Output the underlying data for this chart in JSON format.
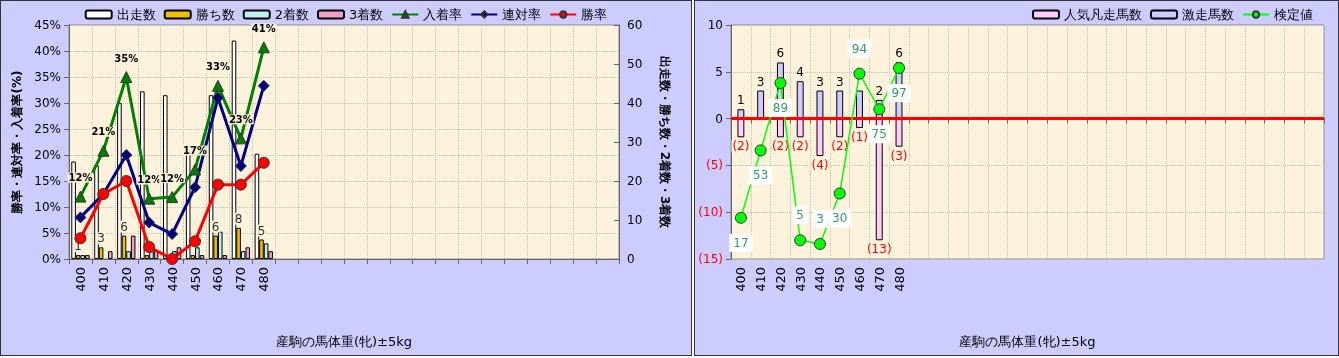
{
  "chart_data": [
    {
      "type": "bar",
      "xlabel": "産駒の馬体重(牝)±5kg",
      "ylabel": "勝率・連対率・入着率(%)",
      "y2label": "出走数・勝ち数・2着数・3着数",
      "categories": [
        "400",
        "410",
        "420",
        "430",
        "440",
        "450",
        "460",
        "470",
        "480",
        null,
        null,
        null,
        null,
        null,
        null,
        null,
        null,
        null,
        null,
        null,
        null,
        null,
        null,
        null
      ],
      "ylim": [
        0,
        45
      ],
      "yticks": [
        {
          "value": 0,
          "label": "0%"
        },
        {
          "value": 5,
          "label": "5%"
        },
        {
          "value": 10,
          "label": "10%"
        },
        {
          "value": 15,
          "label": "15%"
        },
        {
          "value": 20,
          "label": "20%"
        },
        {
          "value": 25,
          "label": "25%"
        },
        {
          "value": 30,
          "label": "30%"
        },
        {
          "value": 35,
          "label": "35%"
        },
        {
          "value": 40,
          "label": "40%"
        },
        {
          "value": 45,
          "label": "45%"
        }
      ],
      "y2lim": [
        0,
        60
      ],
      "y2ticks": [
        0,
        10,
        20,
        30,
        40,
        50,
        60
      ],
      "grid": true,
      "legend": "top",
      "series": [
        {
          "name": "出走数",
          "axis": "y2",
          "color": "#ffffff",
          "values": [
            25,
            24,
            40,
            43,
            42,
            29,
            42,
            56,
            27,
            null,
            null,
            null,
            null,
            null,
            null,
            null,
            null,
            null,
            null,
            null,
            null,
            null,
            null,
            null
          ]
        },
        {
          "name": "勝ち数",
          "axis": "y2",
          "color": "#f0c000",
          "values": [
            1,
            3,
            6,
            1,
            0,
            1,
            6,
            8,
            5,
            null,
            null,
            null,
            null,
            null,
            null,
            null,
            null,
            null,
            null,
            null,
            null,
            null,
            null,
            null
          ],
          "value_labels": [
            "1",
            "3",
            "6",
            null,
            null,
            null,
            "6",
            "8",
            "5",
            null,
            null,
            null,
            null,
            null,
            null,
            null,
            null,
            null,
            null,
            null,
            null,
            null,
            null,
            null
          ]
        },
        {
          "name": "2着数",
          "axis": "y2",
          "color": "#c0f0f0",
          "values": [
            1,
            0,
            2,
            2,
            2,
            3,
            7,
            2,
            4,
            null,
            null,
            null,
            null,
            null,
            null,
            null,
            null,
            null,
            null,
            null,
            null,
            null,
            null,
            null
          ]
        },
        {
          "name": "3着数",
          "axis": "y2",
          "color": "#f0a0c8",
          "values": [
            1,
            2,
            6,
            2,
            3,
            1,
            1,
            3,
            2,
            null,
            null,
            null,
            null,
            null,
            null,
            null,
            null,
            null,
            null,
            null,
            null,
            null,
            null,
            null
          ]
        },
        {
          "name": "入着率",
          "type": "line",
          "marker": "triangle",
          "color": "#008000",
          "values": [
            12,
            20.8,
            35,
            11.6,
            11.9,
            17.2,
            33.3,
            23.2,
            40.7,
            null,
            null,
            null,
            null,
            null,
            null,
            null,
            null,
            null,
            null,
            null,
            null,
            null,
            null,
            null
          ],
          "value_labels": [
            "12%",
            "21%",
            "35%",
            "12%",
            "12%",
            "17%",
            "33%",
            "23%",
            "41%",
            null,
            null,
            null,
            null,
            null,
            null,
            null,
            null,
            null,
            null,
            null,
            null,
            null,
            null,
            null
          ]
        },
        {
          "name": "連対率",
          "type": "line",
          "marker": "diamond",
          "color": "#000080",
          "values": [
            8,
            12.5,
            20,
            7,
            4.8,
            13.8,
            31,
            17.9,
            33.3,
            null,
            null,
            null,
            null,
            null,
            null,
            null,
            null,
            null,
            null,
            null,
            null,
            null,
            null,
            null
          ]
        },
        {
          "name": "勝率",
          "type": "line",
          "marker": "circle",
          "color": "#ff0000",
          "values": [
            4,
            12.5,
            15,
            2.3,
            0,
            3.4,
            14.3,
            14.3,
            18.5,
            null,
            null,
            null,
            null,
            null,
            null,
            null,
            null,
            null,
            null,
            null,
            null,
            null,
            null,
            null
          ]
        }
      ]
    },
    {
      "type": "bar",
      "xlabel": "産駒の馬体重(牝)±5kg",
      "stacked": true,
      "categories": [
        "400",
        "410",
        "420",
        "430",
        "440",
        "450",
        "460",
        "470",
        "480",
        null,
        null,
        null,
        null,
        null,
        null,
        null,
        null,
        null,
        null,
        null,
        null,
        null,
        null,
        null,
        null,
        null,
        null,
        null,
        null,
        null
      ],
      "ylim": [
        -15,
        10
      ],
      "yticks": [
        {
          "value": -15,
          "label": "(15)"
        },
        {
          "value": -10,
          "label": "(10)"
        },
        {
          "value": -5,
          "label": "(5)"
        },
        0,
        5,
        10
      ],
      "y2lim": [
        -5,
        120
      ],
      "grid": true,
      "legend": "top right",
      "ref_lines": [
        {
          "axis": "y",
          "value": 0,
          "color": "#ff0000"
        }
      ],
      "series": [
        {
          "name": "人気凡走馬数",
          "color": "#ffccff",
          "values": [
            -2,
            null,
            -2,
            -2,
            -4,
            -2,
            -1,
            -13,
            -3,
            null,
            null,
            null,
            null,
            null,
            null,
            null,
            null,
            null,
            null,
            null,
            null,
            null,
            null,
            null,
            null,
            null,
            null,
            null,
            null,
            null
          ],
          "value_labels": [
            "(2)",
            null,
            "(2)",
            "(2)",
            "(4)",
            "(2)",
            "(1)",
            "(13)",
            "(3)",
            null,
            null,
            null,
            null,
            null,
            null,
            null,
            null,
            null,
            null,
            null,
            null,
            null,
            null,
            null,
            null,
            null,
            null,
            null,
            null,
            null
          ]
        },
        {
          "name": "激走馬数",
          "color": "#ccccff",
          "values": [
            1,
            3,
            6,
            4,
            3,
            3,
            3,
            2,
            6,
            null,
            null,
            null,
            null,
            null,
            null,
            null,
            null,
            null,
            null,
            null,
            null,
            null,
            null,
            null,
            null,
            null,
            null,
            null,
            null,
            null
          ],
          "value_labels": [
            "1",
            "3",
            "6",
            "4",
            "3",
            "3",
            null,
            "2",
            "6",
            null,
            null,
            null,
            null,
            null,
            null,
            null,
            null,
            null,
            null,
            null,
            null,
            null,
            null,
            null,
            null,
            null,
            null,
            null,
            null,
            null
          ]
        },
        {
          "name": "検定値",
          "type": "line",
          "axis": "y2",
          "marker": "circle",
          "color": "#00ff00",
          "values": [
            17,
            53,
            89,
            5,
            3,
            30,
            94,
            75,
            97,
            null,
            null,
            null,
            null,
            null,
            null,
            null,
            null,
            null,
            null,
            null,
            null,
            null,
            null,
            null,
            null,
            null,
            null,
            null,
            null,
            null
          ],
          "value_labels": [
            "17",
            "53",
            "89",
            "5",
            "3",
            "30",
            "94",
            "75",
            "97",
            null,
            null,
            null,
            null,
            null,
            null,
            null,
            null,
            null,
            null,
            null,
            null,
            null,
            null,
            null,
            null,
            null,
            null,
            null,
            null,
            null
          ]
        }
      ]
    }
  ]
}
